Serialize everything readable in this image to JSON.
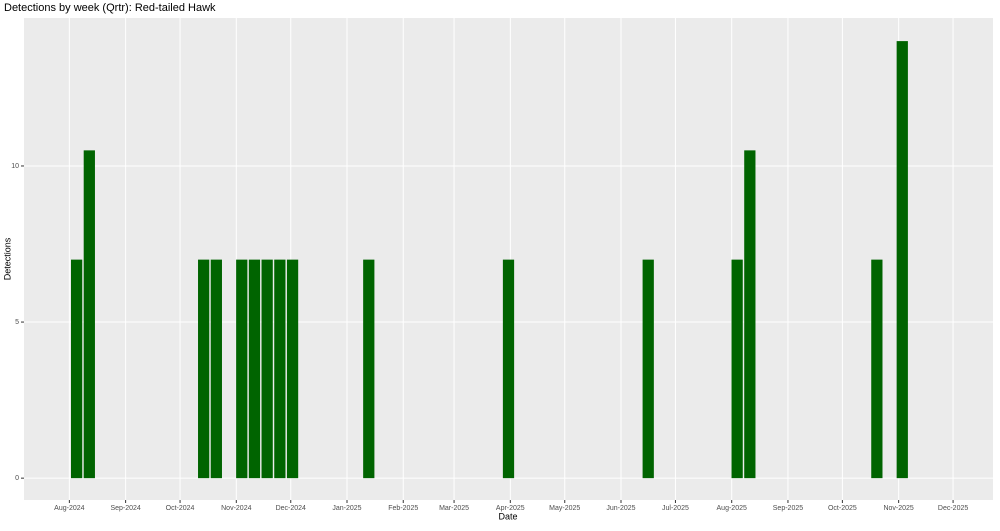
{
  "chart_data": {
    "type": "bar",
    "title": "Detections by week (Qrtr): Red-tailed Hawk",
    "x_label": "Date",
    "y_label": "Detections",
    "x": [
      "2024-08-05",
      "2024-08-12",
      "2024-10-14",
      "2024-10-21",
      "2024-11-04",
      "2024-11-11",
      "2024-11-18",
      "2024-11-25",
      "2024-12-02",
      "2025-01-13",
      "2025-03-31",
      "2025-06-16",
      "2025-08-04",
      "2025-08-11",
      "2025-10-20",
      "2025-11-03"
    ],
    "values": [
      7,
      10.5,
      7,
      7,
      7,
      7,
      7,
      7,
      7,
      7,
      7,
      7,
      7,
      10.5,
      7,
      14
    ],
    "color": "#006400",
    "xlim": [
      "2024-07-07",
      "2025-12-23"
    ],
    "xticks": [
      {
        "value": "2024-08",
        "label": "Aug-2024"
      },
      {
        "value": "2024-09",
        "label": "Sep-2024"
      },
      {
        "value": "2024-10",
        "label": "Oct-2024"
      },
      {
        "value": "2024-11",
        "label": "Nov-2024"
      },
      {
        "value": "2024-12",
        "label": "Dec-2024"
      },
      {
        "value": "2025-01",
        "label": "Jan-2025"
      },
      {
        "value": "2025-02",
        "label": "Feb-2025"
      },
      {
        "value": "2025-03",
        "label": "Mar-2025"
      },
      {
        "value": "2025-04",
        "label": "Apr-2025"
      },
      {
        "value": "2025-05",
        "label": "May-2025"
      },
      {
        "value": "2025-06",
        "label": "Jun-2025"
      },
      {
        "value": "2025-07",
        "label": "Jul-2025"
      },
      {
        "value": "2025-08",
        "label": "Aug-2025"
      },
      {
        "value": "2025-09",
        "label": "Sep-2025"
      },
      {
        "value": "2025-10",
        "label": "Oct-2025"
      },
      {
        "value": "2025-11",
        "label": "Nov-2025"
      },
      {
        "value": "2025-12",
        "label": "Dec-2025"
      }
    ],
    "ylim": [
      -0.7,
      14.74
    ],
    "yticks": [
      0,
      5,
      10
    ],
    "grid": true
  }
}
